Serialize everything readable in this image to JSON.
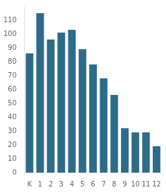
{
  "chart_data": {
    "type": "bar",
    "categories": [
      "K",
      "1",
      "2",
      "3",
      "4",
      "5",
      "6",
      "7",
      "8",
      "9",
      "10",
      "11",
      "12"
    ],
    "values": [
      86,
      115,
      96,
      101,
      103,
      89,
      78,
      68,
      56,
      32,
      29,
      29,
      19
    ],
    "color": "#2e6b8a",
    "ylim": [
      0,
      120
    ],
    "yticks": [
      0,
      10,
      20,
      30,
      40,
      50,
      60,
      70,
      80,
      90,
      100,
      110
    ],
    "grid": false
  }
}
